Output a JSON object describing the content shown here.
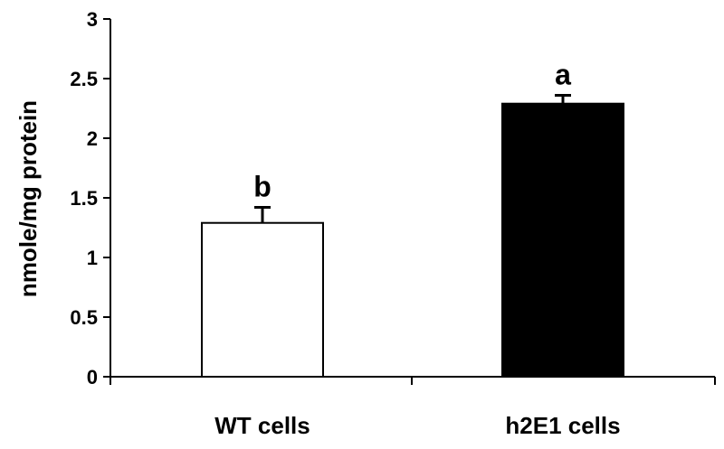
{
  "chart_data": {
    "type": "bar",
    "title": "",
    "xlabel": "",
    "ylabel": "nmole/mg protein",
    "ylim": [
      0,
      3
    ],
    "yticks": [
      "0",
      "0.5",
      "1",
      "1.5",
      "2",
      "2.5",
      "3"
    ],
    "ytick_values": [
      0,
      0.5,
      1,
      1.5,
      2,
      2.5,
      3
    ],
    "categories": [
      "WT cells",
      "h2E1 cells"
    ],
    "values": [
      1.29,
      2.29
    ],
    "errors": [
      0.13,
      0.07
    ],
    "significance_labels": [
      "b",
      "a"
    ],
    "bar_fill_colors": [
      "#ffffff",
      "#000000"
    ],
    "bar_stroke_color": "#000000",
    "grid": false,
    "legend": "none"
  }
}
